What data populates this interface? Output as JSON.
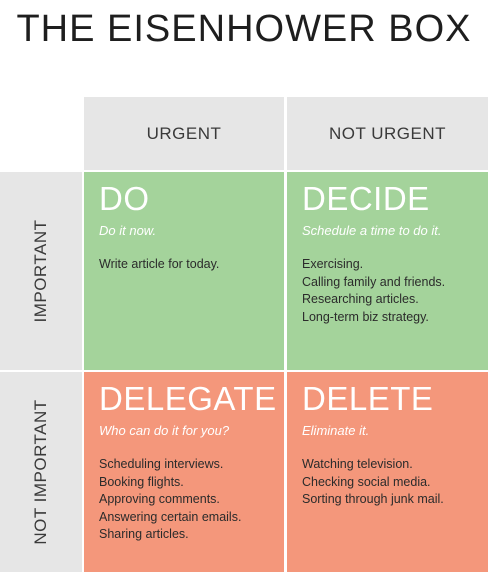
{
  "title": "THE EISENHOWER BOX",
  "columns": {
    "urgent": "URGENT",
    "not_urgent": "NOT URGENT"
  },
  "rows": {
    "important": "IMPORTANT",
    "not_important": "NOT IMPORTANT"
  },
  "colors": {
    "green": "#a4d39b",
    "salmon": "#f4977b",
    "header_gray": "#e6e6e6"
  },
  "quadrants": {
    "do": {
      "title": "DO",
      "subtitle": "Do it now.",
      "items": [
        "Write article for today."
      ]
    },
    "decide": {
      "title": "DECIDE",
      "subtitle": "Schedule a time to do it.",
      "items": [
        "Exercising.",
        "Calling family and friends.",
        "Researching articles.",
        "Long-term biz strategy."
      ]
    },
    "delegate": {
      "title": "DELEGATE",
      "subtitle": "Who can do it for you?",
      "items": [
        "Scheduling interviews.",
        "Booking flights.",
        "Approving comments.",
        "Answering certain emails.",
        "Sharing articles."
      ]
    },
    "delete": {
      "title": "DELETE",
      "subtitle": "Eliminate it.",
      "items": [
        "Watching television.",
        "Checking social media.",
        "Sorting through junk mail."
      ]
    }
  }
}
